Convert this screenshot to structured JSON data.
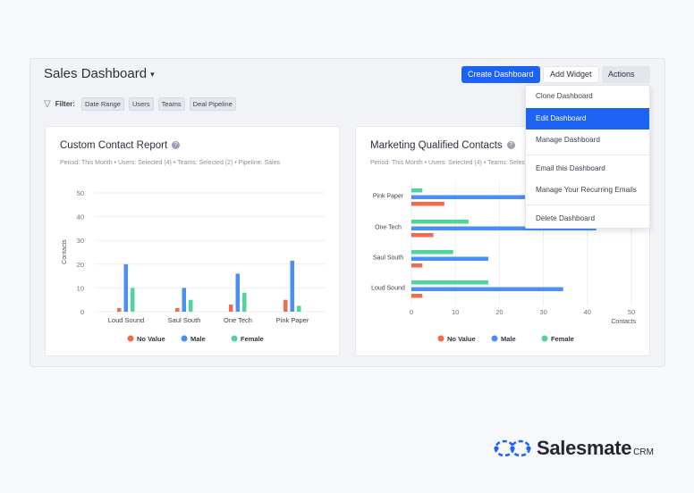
{
  "header": {
    "title": "Sales Dashboard",
    "create_label": "Create Dashboard",
    "add_widget_label": "Add Widget",
    "actions_label": "Actions"
  },
  "filter": {
    "label": "Filter:",
    "chips": [
      "Date Range",
      "Users",
      "Teams",
      "Deal Pipeline"
    ]
  },
  "actions_menu": {
    "items": [
      "Clone Dashboard",
      "Edit Dashboard",
      "Manage Dashboard",
      "Email this Dashboard",
      "Manage Your Recurring Emails",
      "Delete Dashboard"
    ],
    "active": "Edit Dashboard"
  },
  "cards": [
    {
      "title": "Custom Contact Report",
      "meta": "Period: This Month  •  Users: Selected (4)  •  Teams: Selected (2)  •  Pipeline: Sales"
    },
    {
      "title": "Marketing Qualified Contacts",
      "meta": "Period: This Month  •  Users: Selected (4)  •  Teams: Selected (2)  •  Pipeline: Sales"
    }
  ],
  "brand": {
    "name": "Salesmate",
    "suffix": "CRM",
    "color": "#1d63f3"
  },
  "colors": {
    "no_value": "#f26b4d",
    "male": "#4a8ff5",
    "female": "#4fd49a"
  },
  "chart_data": [
    {
      "type": "bar",
      "orientation": "vertical",
      "categories": [
        "Loud Sound",
        "Saul South",
        "One Tech",
        "Pink Paper"
      ],
      "series": [
        {
          "name": "No Value",
          "values": [
            1.5,
            1.5,
            3,
            5
          ]
        },
        {
          "name": "Male",
          "values": [
            20,
            10,
            16,
            21.5
          ]
        },
        {
          "name": "Female",
          "values": [
            10,
            5,
            8,
            2.5
          ]
        }
      ],
      "ylabel": "Contacts",
      "ylim": [
        0,
        50
      ],
      "yticks": [
        0,
        10,
        20,
        30,
        40,
        50
      ],
      "grid": true,
      "legend": "bottom"
    },
    {
      "type": "bar",
      "orientation": "horizontal",
      "categories": [
        "Pink Paper",
        "One Tech",
        "Saul South",
        "Loud Sound"
      ],
      "series": [
        {
          "name": "No Value",
          "values": [
            7.5,
            5,
            2.5,
            2.5
          ]
        },
        {
          "name": "Male",
          "values": [
            45,
            42,
            17.5,
            34.5
          ]
        },
        {
          "name": "Female",
          "values": [
            2.5,
            13,
            9.5,
            17.5
          ]
        }
      ],
      "xlabel": "Contacts",
      "xlim": [
        0,
        50
      ],
      "xticks": [
        0,
        10,
        20,
        30,
        40,
        50
      ],
      "grid": true,
      "legend": "bottom"
    }
  ]
}
